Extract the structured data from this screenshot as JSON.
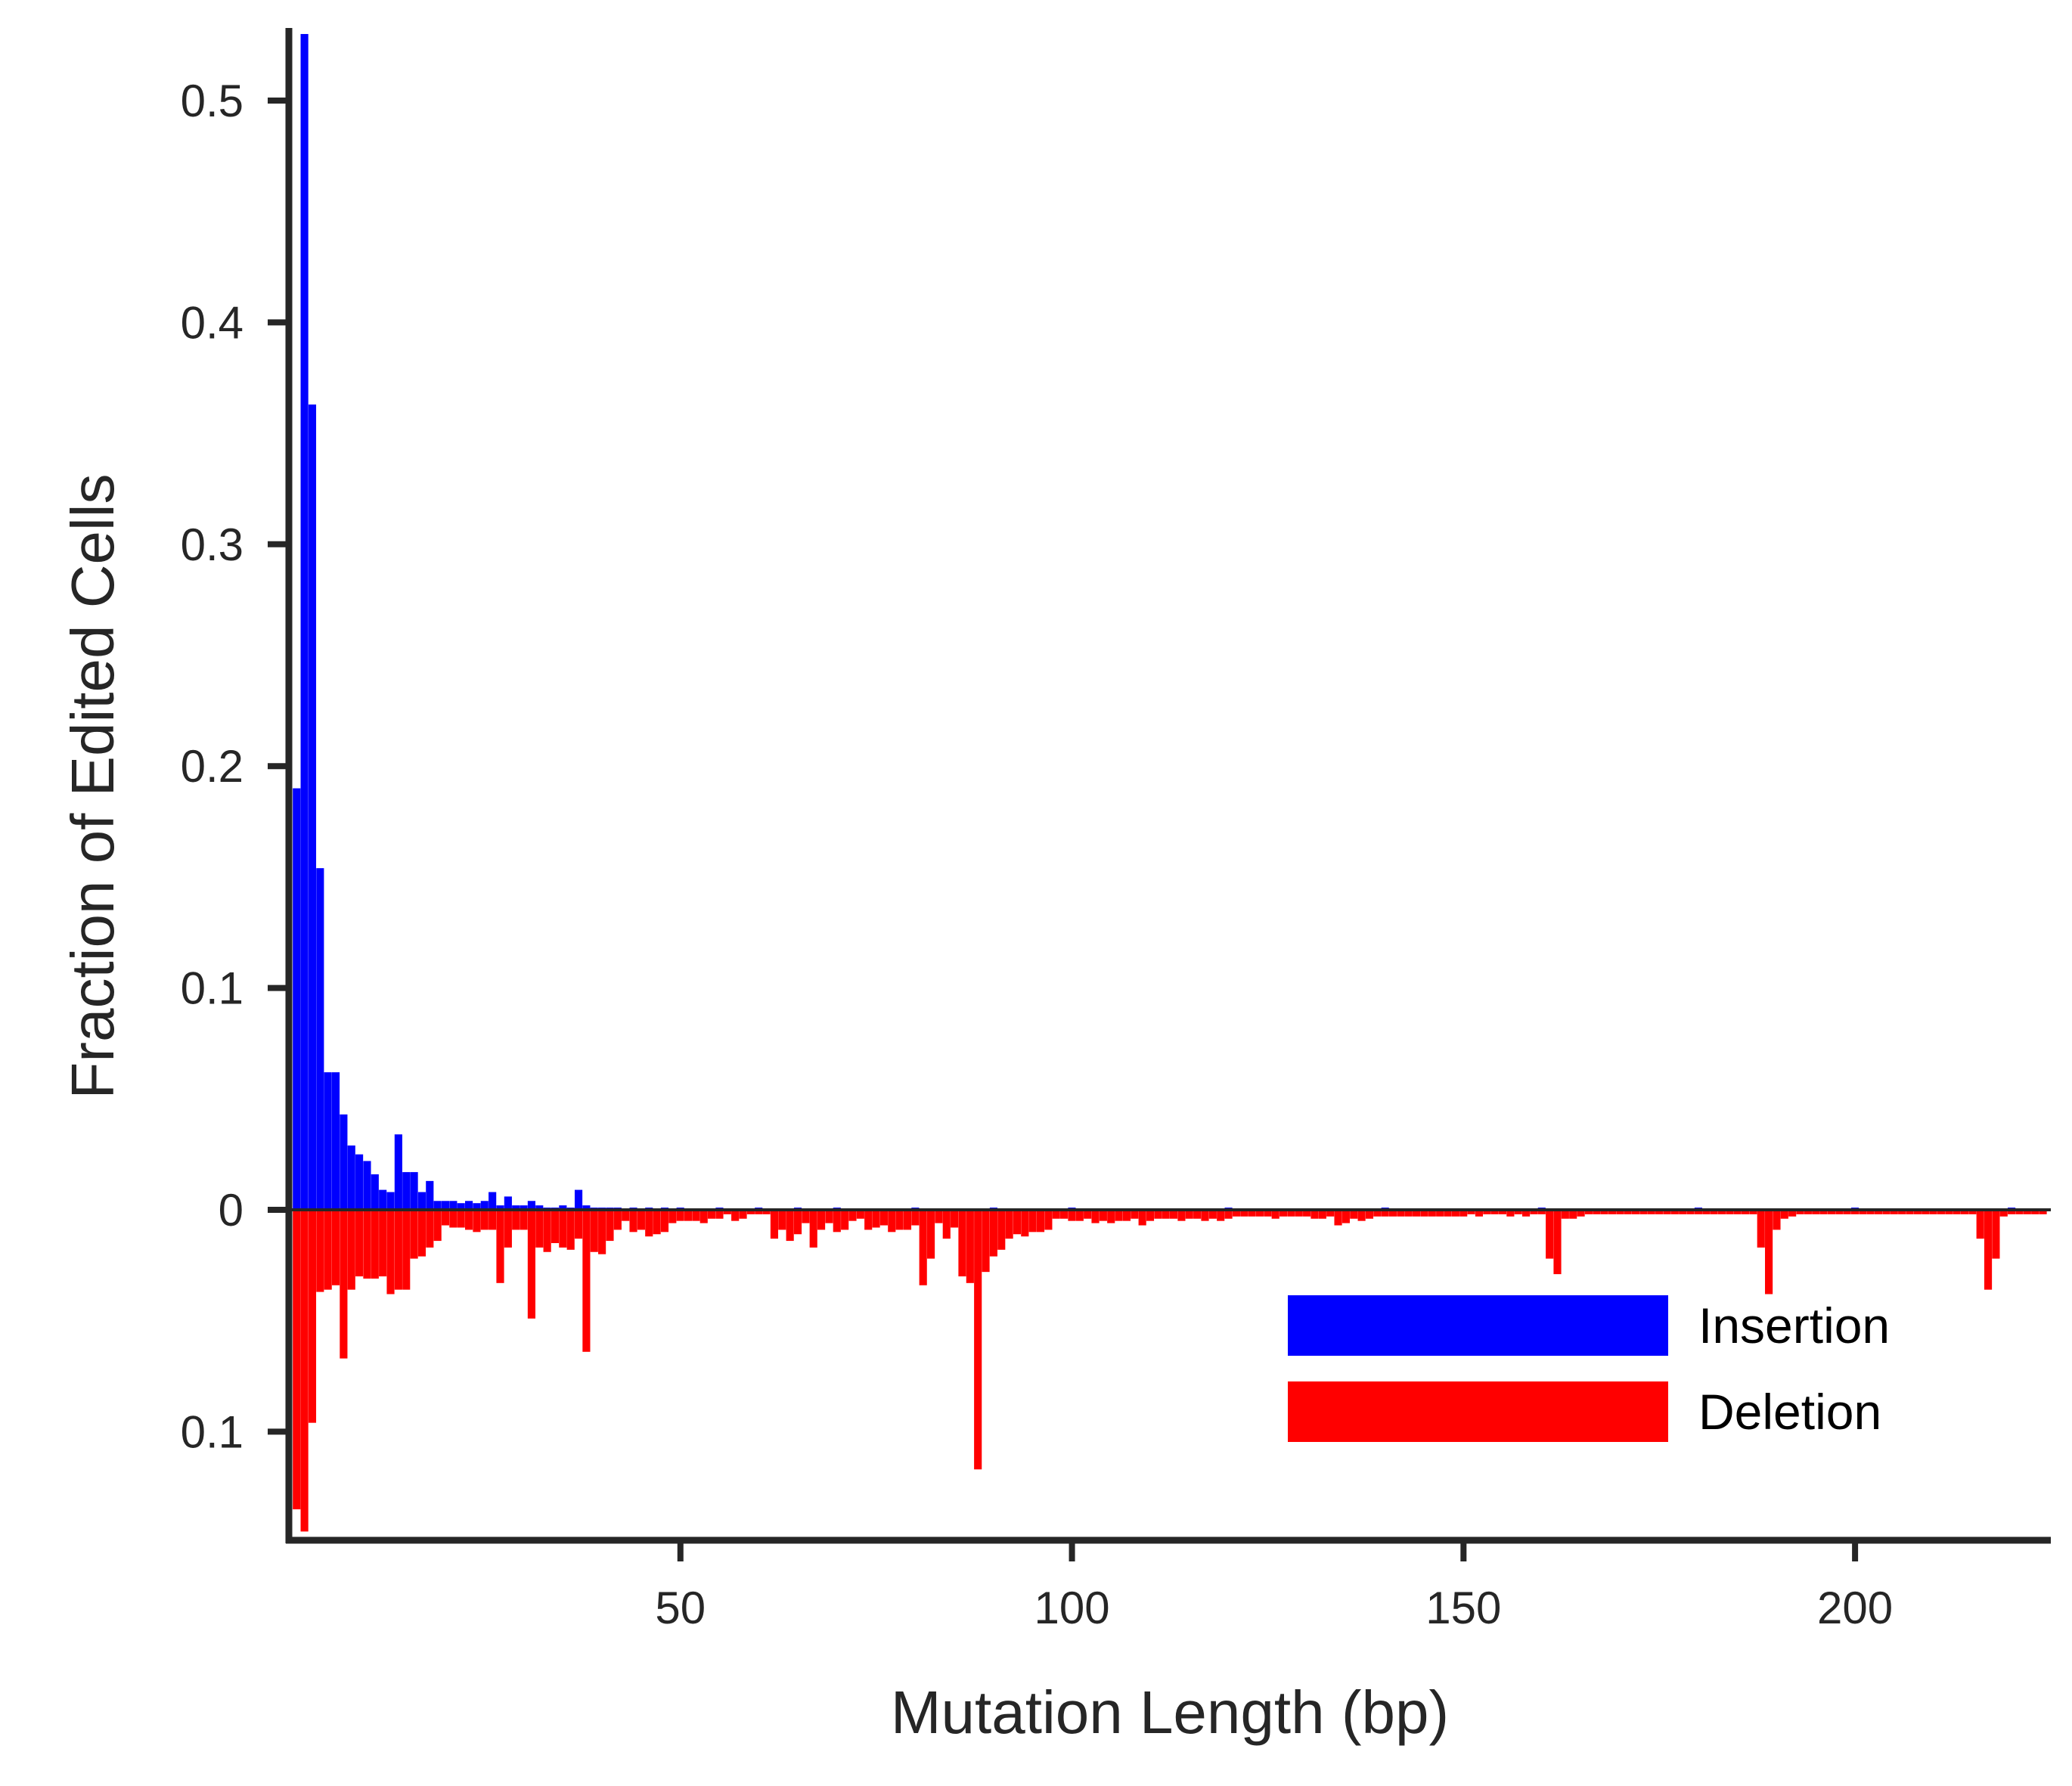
{
  "chart_data": {
    "type": "bar",
    "xlabel": "Mutation Length (bp)",
    "ylabel": "Fraction of Edited Cells",
    "xlim": [
      0,
      225
    ],
    "ylim": [
      -0.15,
      0.53
    ],
    "x_ticks": [
      50,
      100,
      150,
      200
    ],
    "x_tick_labels": [
      "50",
      "100",
      "150",
      "200"
    ],
    "y_ticks": [
      -0.1,
      0,
      0.1,
      0.2,
      0.3,
      0.4,
      0.5
    ],
    "y_tick_labels": [
      "0.1",
      "0",
      "0.1",
      "0.2",
      "0.3",
      "0.4",
      "0.5"
    ],
    "legend_position": "bottom-right",
    "grid": false,
    "series": [
      {
        "name": "Insertion",
        "color": "#0000ff",
        "direction": "up",
        "points": [
          [
            1,
            0.19
          ],
          [
            2,
            0.53
          ],
          [
            3,
            0.363
          ],
          [
            4,
            0.154
          ],
          [
            5,
            0.062
          ],
          [
            6,
            0.062
          ],
          [
            7,
            0.043
          ],
          [
            8,
            0.029
          ],
          [
            9,
            0.025
          ],
          [
            10,
            0.022
          ],
          [
            11,
            0.016
          ],
          [
            12,
            0.009
          ],
          [
            13,
            0.008
          ],
          [
            14,
            0.034
          ],
          [
            15,
            0.017
          ],
          [
            16,
            0.017
          ],
          [
            17,
            0.008
          ],
          [
            18,
            0.013
          ],
          [
            19,
            0.004
          ],
          [
            20,
            0.004
          ],
          [
            21,
            0.004
          ],
          [
            22,
            0.003
          ],
          [
            23,
            0.004
          ],
          [
            24,
            0.003
          ],
          [
            25,
            0.004
          ],
          [
            26,
            0.008
          ],
          [
            27,
            0.002
          ],
          [
            28,
            0.006
          ],
          [
            29,
            0.002
          ],
          [
            30,
            0.002
          ],
          [
            31,
            0.004
          ],
          [
            32,
            0.002
          ],
          [
            33,
            0.001
          ],
          [
            34,
            0.001
          ],
          [
            35,
            0.002
          ],
          [
            36,
            0.001
          ],
          [
            37,
            0.009
          ],
          [
            38,
            0.002
          ],
          [
            39,
            0.001
          ],
          [
            40,
            0.001
          ],
          [
            41,
            0.001
          ],
          [
            42,
            0.001
          ],
          [
            44,
            0.001
          ],
          [
            46,
            0.001
          ],
          [
            48,
            0.001
          ],
          [
            50,
            0.001
          ],
          [
            55,
            0.001
          ],
          [
            60,
            0.001
          ],
          [
            65,
            0.001
          ],
          [
            70,
            0.001
          ],
          [
            80,
            0.001
          ],
          [
            90,
            0.001
          ],
          [
            100,
            0.001
          ],
          [
            120,
            0.001
          ],
          [
            140,
            0.001
          ],
          [
            160,
            0.001
          ],
          [
            180,
            0.001
          ],
          [
            200,
            0.001
          ],
          [
            220,
            0.001
          ]
        ]
      },
      {
        "name": "Deletion",
        "color": "#ff0000",
        "direction": "down",
        "points": [
          [
            1,
            0.135
          ],
          [
            2,
            0.145
          ],
          [
            3,
            0.096
          ],
          [
            4,
            0.037
          ],
          [
            5,
            0.036
          ],
          [
            6,
            0.034
          ],
          [
            7,
            0.067
          ],
          [
            8,
            0.036
          ],
          [
            9,
            0.03
          ],
          [
            10,
            0.031
          ],
          [
            11,
            0.031
          ],
          [
            12,
            0.03
          ],
          [
            13,
            0.038
          ],
          [
            14,
            0.036
          ],
          [
            15,
            0.036
          ],
          [
            16,
            0.022
          ],
          [
            17,
            0.021
          ],
          [
            18,
            0.017
          ],
          [
            19,
            0.014
          ],
          [
            20,
            0.007
          ],
          [
            21,
            0.008
          ],
          [
            22,
            0.008
          ],
          [
            23,
            0.009
          ],
          [
            24,
            0.01
          ],
          [
            25,
            0.009
          ],
          [
            26,
            0.009
          ],
          [
            27,
            0.033
          ],
          [
            28,
            0.017
          ],
          [
            29,
            0.009
          ],
          [
            30,
            0.009
          ],
          [
            31,
            0.049
          ],
          [
            32,
            0.017
          ],
          [
            33,
            0.019
          ],
          [
            34,
            0.015
          ],
          [
            35,
            0.017
          ],
          [
            36,
            0.018
          ],
          [
            37,
            0.013
          ],
          [
            38,
            0.064
          ],
          [
            39,
            0.019
          ],
          [
            40,
            0.02
          ],
          [
            41,
            0.014
          ],
          [
            42,
            0.009
          ],
          [
            43,
            0.005
          ],
          [
            44,
            0.01
          ],
          [
            45,
            0.009
          ],
          [
            46,
            0.012
          ],
          [
            47,
            0.011
          ],
          [
            48,
            0.01
          ],
          [
            49,
            0.006
          ],
          [
            50,
            0.005
          ],
          [
            51,
            0.005
          ],
          [
            52,
            0.005
          ],
          [
            53,
            0.006
          ],
          [
            54,
            0.004
          ],
          [
            55,
            0.004
          ],
          [
            56,
            0.002
          ],
          [
            57,
            0.005
          ],
          [
            58,
            0.004
          ],
          [
            59,
            0.002
          ],
          [
            60,
            0.002
          ],
          [
            61,
            0.002
          ],
          [
            62,
            0.013
          ],
          [
            63,
            0.009
          ],
          [
            64,
            0.014
          ],
          [
            65,
            0.011
          ],
          [
            66,
            0.006
          ],
          [
            67,
            0.017
          ],
          [
            68,
            0.009
          ],
          [
            69,
            0.006
          ],
          [
            70,
            0.01
          ],
          [
            71,
            0.009
          ],
          [
            72,
            0.005
          ],
          [
            73,
            0.004
          ],
          [
            74,
            0.009
          ],
          [
            75,
            0.008
          ],
          [
            76,
            0.007
          ],
          [
            77,
            0.01
          ],
          [
            78,
            0.009
          ],
          [
            79,
            0.009
          ],
          [
            80,
            0.007
          ],
          [
            81,
            0.034
          ],
          [
            82,
            0.022
          ],
          [
            83,
            0.006
          ],
          [
            84,
            0.013
          ],
          [
            85,
            0.008
          ],
          [
            86,
            0.03
          ],
          [
            87,
            0.033
          ],
          [
            88,
            0.117
          ],
          [
            89,
            0.028
          ],
          [
            90,
            0.021
          ],
          [
            91,
            0.018
          ],
          [
            92,
            0.013
          ],
          [
            93,
            0.011
          ],
          [
            94,
            0.012
          ],
          [
            95,
            0.01
          ],
          [
            96,
            0.01
          ],
          [
            97,
            0.009
          ],
          [
            98,
            0.004
          ],
          [
            99,
            0.004
          ],
          [
            100,
            0.005
          ],
          [
            101,
            0.005
          ],
          [
            102,
            0.004
          ],
          [
            103,
            0.006
          ],
          [
            104,
            0.005
          ],
          [
            105,
            0.006
          ],
          [
            106,
            0.005
          ],
          [
            107,
            0.005
          ],
          [
            108,
            0.004
          ],
          [
            109,
            0.007
          ],
          [
            110,
            0.005
          ],
          [
            111,
            0.004
          ],
          [
            112,
            0.004
          ],
          [
            113,
            0.004
          ],
          [
            114,
            0.005
          ],
          [
            115,
            0.004
          ],
          [
            116,
            0.004
          ],
          [
            117,
            0.005
          ],
          [
            118,
            0.004
          ],
          [
            119,
            0.005
          ],
          [
            120,
            0.004
          ],
          [
            121,
            0.003
          ],
          [
            122,
            0.003
          ],
          [
            123,
            0.003
          ],
          [
            124,
            0.003
          ],
          [
            125,
            0.003
          ],
          [
            126,
            0.004
          ],
          [
            127,
            0.003
          ],
          [
            128,
            0.003
          ],
          [
            129,
            0.003
          ],
          [
            130,
            0.003
          ],
          [
            131,
            0.004
          ],
          [
            132,
            0.004
          ],
          [
            133,
            0.003
          ],
          [
            134,
            0.007
          ],
          [
            135,
            0.006
          ],
          [
            136,
            0.004
          ],
          [
            137,
            0.005
          ],
          [
            138,
            0.004
          ],
          [
            139,
            0.003
          ],
          [
            140,
            0.003
          ],
          [
            141,
            0.003
          ],
          [
            142,
            0.003
          ],
          [
            143,
            0.003
          ],
          [
            144,
            0.003
          ],
          [
            145,
            0.003
          ],
          [
            146,
            0.003
          ],
          [
            147,
            0.003
          ],
          [
            148,
            0.003
          ],
          [
            149,
            0.003
          ],
          [
            150,
            0.003
          ],
          [
            151,
            0.002
          ],
          [
            152,
            0.003
          ],
          [
            153,
            0.002
          ],
          [
            154,
            0.002
          ],
          [
            155,
            0.002
          ],
          [
            156,
            0.003
          ],
          [
            157,
            0.002
          ],
          [
            158,
            0.003
          ],
          [
            159,
            0.002
          ],
          [
            160,
            0.002
          ],
          [
            161,
            0.022
          ],
          [
            162,
            0.029
          ],
          [
            163,
            0.004
          ],
          [
            164,
            0.004
          ],
          [
            165,
            0.003
          ],
          [
            166,
            0.002
          ],
          [
            167,
            0.002
          ],
          [
            168,
            0.002
          ],
          [
            169,
            0.002
          ],
          [
            170,
            0.002
          ],
          [
            171,
            0.002
          ],
          [
            172,
            0.002
          ],
          [
            173,
            0.002
          ],
          [
            174,
            0.002
          ],
          [
            175,
            0.002
          ],
          [
            176,
            0.002
          ],
          [
            177,
            0.002
          ],
          [
            178,
            0.002
          ],
          [
            179,
            0.002
          ],
          [
            180,
            0.002
          ],
          [
            181,
            0.002
          ],
          [
            182,
            0.002
          ],
          [
            183,
            0.002
          ],
          [
            184,
            0.002
          ],
          [
            185,
            0.002
          ],
          [
            186,
            0.002
          ],
          [
            187,
            0.002
          ],
          [
            188,
            0.017
          ],
          [
            189,
            0.038
          ],
          [
            190,
            0.009
          ],
          [
            191,
            0.004
          ],
          [
            192,
            0.003
          ],
          [
            193,
            0.002
          ],
          [
            194,
            0.002
          ],
          [
            195,
            0.002
          ],
          [
            196,
            0.002
          ],
          [
            197,
            0.002
          ],
          [
            198,
            0.002
          ],
          [
            199,
            0.002
          ],
          [
            200,
            0.002
          ],
          [
            201,
            0.002
          ],
          [
            202,
            0.002
          ],
          [
            203,
            0.002
          ],
          [
            204,
            0.002
          ],
          [
            205,
            0.002
          ],
          [
            206,
            0.002
          ],
          [
            207,
            0.002
          ],
          [
            208,
            0.002
          ],
          [
            209,
            0.002
          ],
          [
            210,
            0.002
          ],
          [
            211,
            0.002
          ],
          [
            212,
            0.002
          ],
          [
            213,
            0.002
          ],
          [
            214,
            0.002
          ],
          [
            215,
            0.002
          ],
          [
            216,
            0.013
          ],
          [
            217,
            0.036
          ],
          [
            218,
            0.022
          ],
          [
            219,
            0.003
          ],
          [
            220,
            0.002
          ],
          [
            221,
            0.002
          ],
          [
            222,
            0.002
          ],
          [
            223,
            0.002
          ],
          [
            224,
            0.002
          ]
        ]
      }
    ]
  }
}
